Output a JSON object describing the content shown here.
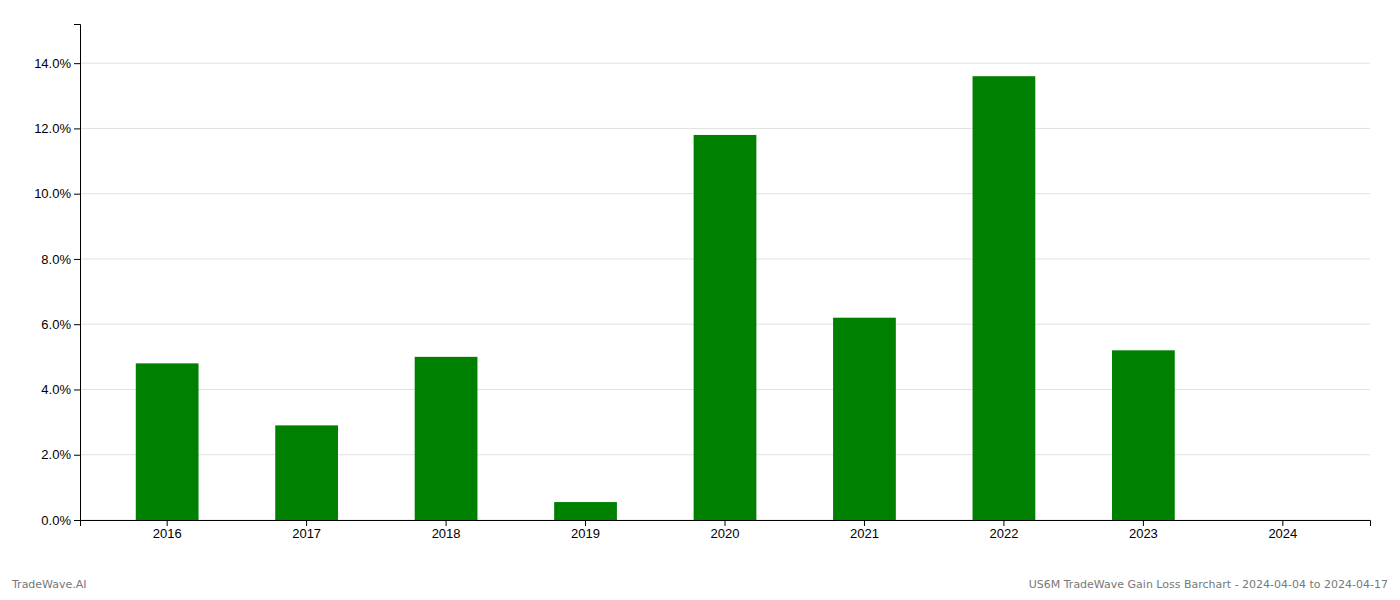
{
  "chart_data": {
    "type": "bar",
    "categories": [
      "2016",
      "2017",
      "2018",
      "2019",
      "2020",
      "2021",
      "2022",
      "2023",
      "2024"
    ],
    "values": [
      0.048,
      0.029,
      0.05,
      0.0055,
      0.118,
      0.062,
      0.136,
      0.052,
      0.0
    ],
    "color": "#008000",
    "ylim": [
      0,
      0.152
    ],
    "yticks": [
      {
        "value": 0.0,
        "label": "0.0%"
      },
      {
        "value": 0.02,
        "label": "2.0%"
      },
      {
        "value": 0.04,
        "label": "4.0%"
      },
      {
        "value": 0.06,
        "label": "6.0%"
      },
      {
        "value": 0.08,
        "label": "8.0%"
      },
      {
        "value": 0.1,
        "label": "10.0%"
      },
      {
        "value": 0.12,
        "label": "12.0%"
      },
      {
        "value": 0.14,
        "label": "14.0%"
      }
    ],
    "grid": true,
    "annotations": [
      "TradeWave.AI",
      "US6M TradeWave Gain Loss Barchart - 2024-04-04 to 2024-04-17"
    ]
  }
}
